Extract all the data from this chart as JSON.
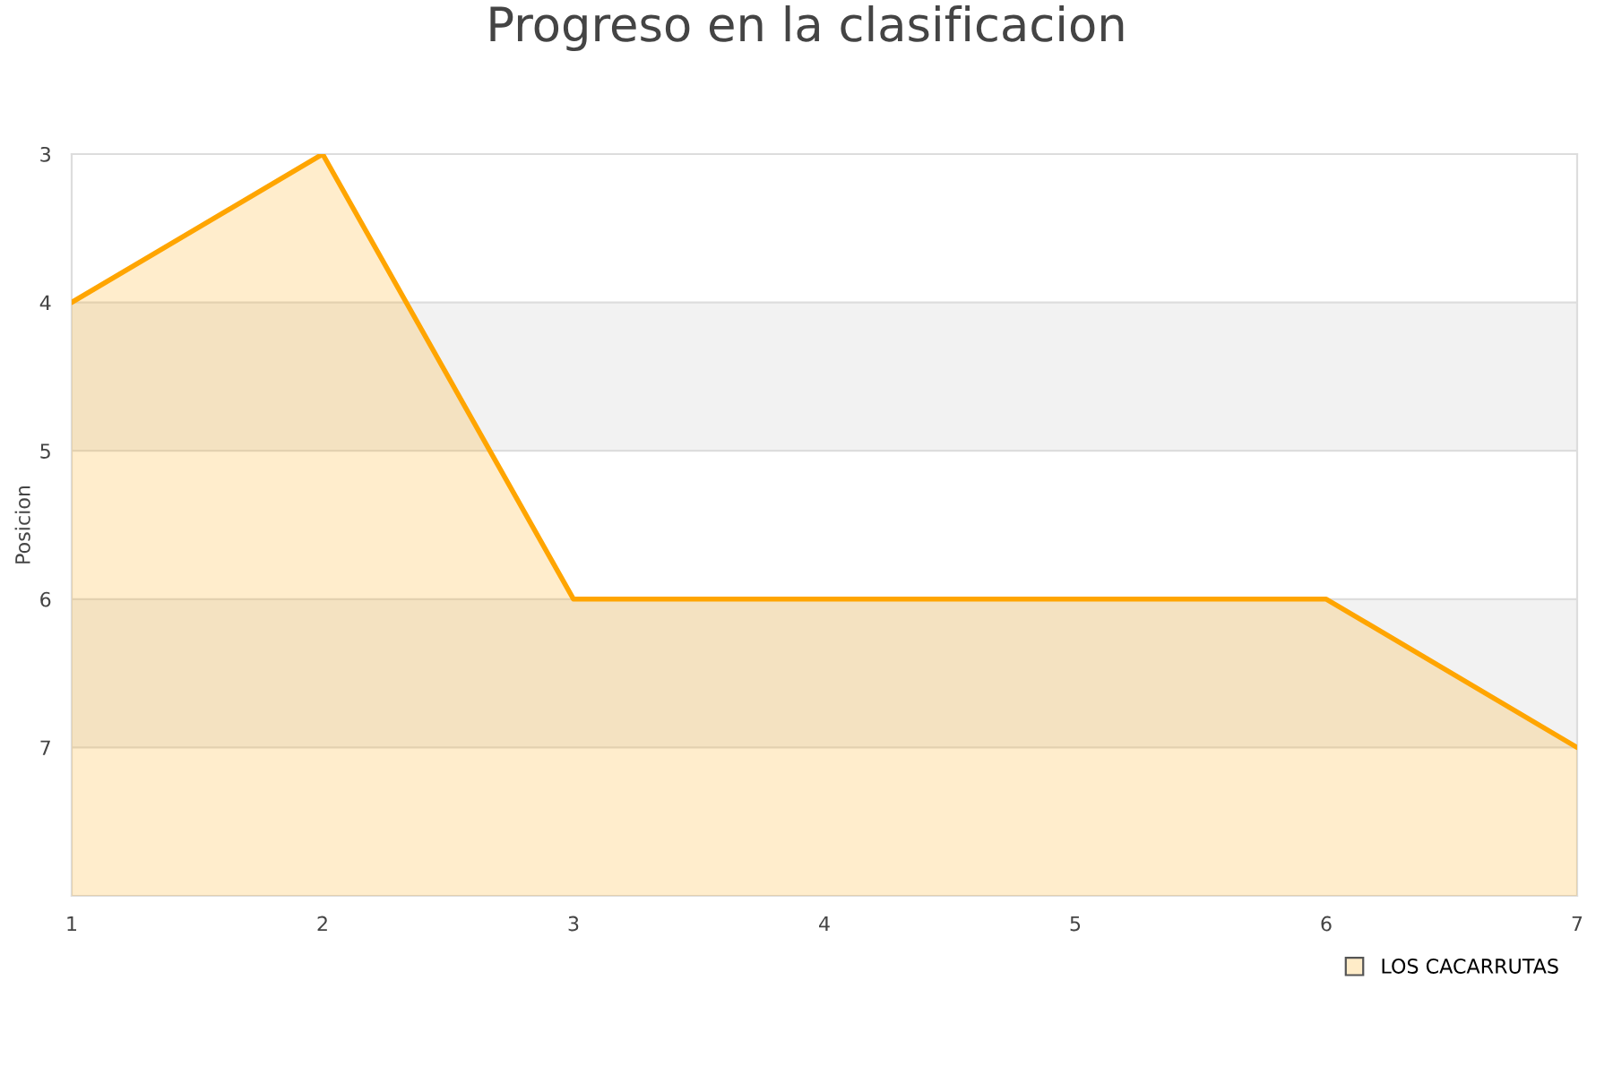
{
  "chart_data": {
    "type": "area",
    "title": "Progreso en la clasificacion",
    "ylabel": "Posicion",
    "x": [
      1,
      2,
      3,
      4,
      5,
      6,
      7
    ],
    "series": [
      {
        "name": "LOS CACARRUTAS",
        "color": "#ffa500",
        "values": [
          4,
          3,
          6,
          6,
          6,
          6,
          7
        ]
      }
    ],
    "xlim": [
      1,
      7
    ],
    "xticks": [
      1,
      2,
      3,
      4,
      5,
      6,
      7
    ],
    "ylim": [
      8,
      3
    ],
    "yticks": [
      3,
      4,
      5,
      6,
      7
    ],
    "bands": [
      {
        "axis": "y",
        "from": 4,
        "to": 5,
        "color": "#f2f2f2"
      },
      {
        "axis": "y",
        "from": 6,
        "to": 7,
        "color": "#f2f2f2"
      }
    ],
    "grid": "y",
    "legend": "bottom right",
    "line_style": "solid"
  }
}
